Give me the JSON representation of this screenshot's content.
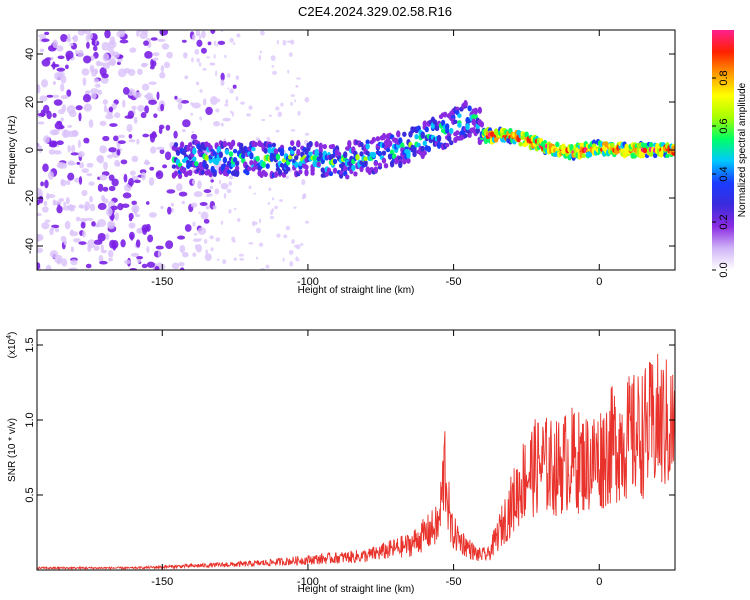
{
  "title": "C2E4.2024.329.02.58.R16",
  "chart_data": [
    {
      "type": "heatmap",
      "xlabel": "Height of straight line (km)",
      "ylabel": "Frequency (Hz)",
      "xlim": [
        -193,
        26
      ],
      "ylim": [
        -50,
        50
      ],
      "x_ticks": [
        -150,
        -100,
        -50,
        0
      ],
      "y_ticks": [
        -40,
        -20,
        0,
        20,
        40
      ],
      "ridge": [
        {
          "x": -145,
          "y": -4
        },
        {
          "x": -130,
          "y": -3
        },
        {
          "x": -120,
          "y": -4
        },
        {
          "x": -110,
          "y": -4
        },
        {
          "x": -100,
          "y": -3
        },
        {
          "x": -90,
          "y": -5
        },
        {
          "x": -80,
          "y": -3
        },
        {
          "x": -70,
          "y": 0
        },
        {
          "x": -62,
          "y": 3
        },
        {
          "x": -55,
          "y": 7
        },
        {
          "x": -47,
          "y": 12
        },
        {
          "x": -42,
          "y": 14
        },
        {
          "x": -40,
          "y": 6
        },
        {
          "x": -30,
          "y": 6
        },
        {
          "x": -20,
          "y": 2
        },
        {
          "x": -10,
          "y": -1
        },
        {
          "x": 0,
          "y": 1
        },
        {
          "x": 10,
          "y": 0
        },
        {
          "x": 20,
          "y": 0
        },
        {
          "x": 26,
          "y": 0
        }
      ]
    },
    {
      "type": "line",
      "xlabel": "Height of straight line (km)",
      "ylabel": "SNR (10 * v/v)",
      "y_scale_label": "(x10",
      "y_scale_exp": "4",
      "xlim": [
        -193,
        26
      ],
      "ylim": [
        0,
        1.6
      ],
      "x_ticks": [
        -150,
        -100,
        -50,
        0
      ],
      "y_ticks": [
        0.5,
        1.0,
        1.5
      ],
      "y_tick_labels": [
        "0.5",
        "1.0",
        "1.5"
      ],
      "series": [
        {
          "color": "#e8322b",
          "envelope": [
            {
              "x": -193,
              "y": 0.02
            },
            {
              "x": -160,
              "y": 0.02
            },
            {
              "x": -140,
              "y": 0.04
            },
            {
              "x": -120,
              "y": 0.06
            },
            {
              "x": -100,
              "y": 0.1
            },
            {
              "x": -80,
              "y": 0.14
            },
            {
              "x": -65,
              "y": 0.25
            },
            {
              "x": -60,
              "y": 0.35
            },
            {
              "x": -55,
              "y": 0.45
            },
            {
              "x": -53,
              "y": 1.05
            },
            {
              "x": -51,
              "y": 0.4
            },
            {
              "x": -48,
              "y": 0.3
            },
            {
              "x": -42,
              "y": 0.15
            },
            {
              "x": -38,
              "y": 0.15
            },
            {
              "x": -34,
              "y": 0.4
            },
            {
              "x": -30,
              "y": 0.65
            },
            {
              "x": -25,
              "y": 0.95
            },
            {
              "x": -20,
              "y": 1.05
            },
            {
              "x": -15,
              "y": 1.0
            },
            {
              "x": -10,
              "y": 1.1
            },
            {
              "x": -5,
              "y": 1.05
            },
            {
              "x": 0,
              "y": 1.1
            },
            {
              "x": 5,
              "y": 1.25
            },
            {
              "x": 10,
              "y": 1.3
            },
            {
              "x": 15,
              "y": 1.35
            },
            {
              "x": 20,
              "y": 1.45
            },
            {
              "x": 26,
              "y": 1.4
            }
          ]
        }
      ]
    }
  ],
  "colorbar": {
    "label": "Normalized spectral amplitude",
    "range": [
      0,
      1
    ],
    "ticks": [
      0.0,
      0.2,
      0.4,
      0.6,
      0.8
    ],
    "tick_labels": [
      "0.0",
      "0.2",
      "0.4",
      "0.6",
      "0.8"
    ],
    "colors": [
      "#ffffff",
      "#d0b4f8",
      "#8a2be2",
      "#3a2bdc",
      "#1a3cff",
      "#00c8ff",
      "#00ff66",
      "#a8ff00",
      "#ffff00",
      "#ff9a00",
      "#ff2000",
      "#ff2090"
    ]
  }
}
